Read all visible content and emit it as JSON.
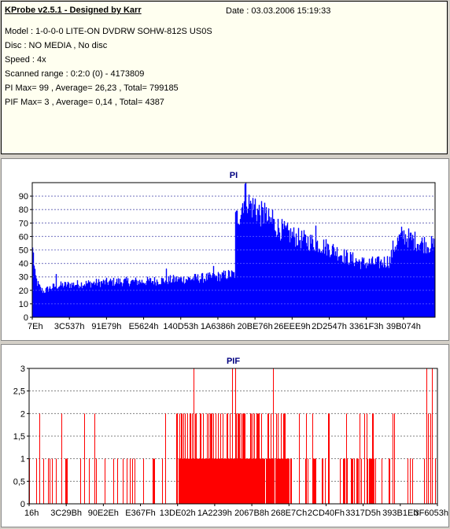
{
  "header": {
    "title": "KProbe v2.5.1 - Designed by Karr",
    "date": "Date : 03.03.2006 15:19:33",
    "lines": [
      "Model : 1-0-0-0 LITE-ON DVDRW SOHW-812S  US0S",
      "Disc : NO MEDIA , No disc",
      "Speed : 4x",
      "Scanned range : 0:2:0 (0) - 4173809",
      "PI Max= 99 , Average= 26,23 , Total= 799185",
      "PIF Max= 3 , Average= 0,14 , Total= 4387"
    ]
  },
  "colors": {
    "pi": "#0000ff",
    "pif": "#ff0000",
    "title": "#000080",
    "grid": "#808080"
  },
  "chart_data": [
    {
      "type": "area",
      "title": "PI",
      "ylim": [
        0,
        100
      ],
      "yticks": [
        0,
        10,
        20,
        30,
        40,
        50,
        60,
        70,
        80,
        90
      ],
      "xtick_labels": [
        "7Eh",
        "3C537h",
        "91E79h",
        "E5624h",
        "140D53h",
        "1A6386h",
        "20BE76h",
        "26EEE9h",
        "2D2547h",
        "3361F3h",
        "39B074h"
      ],
      "grid": "horizontal dotted",
      "profile": [
        [
          0,
          47
        ],
        [
          1,
          40
        ],
        [
          3,
          30
        ],
        [
          6,
          24
        ],
        [
          10,
          20
        ],
        [
          14,
          18
        ],
        [
          20,
          20
        ],
        [
          30,
          22
        ],
        [
          50,
          23
        ],
        [
          80,
          24
        ],
        [
          110,
          25
        ],
        [
          140,
          25
        ],
        [
          170,
          26
        ],
        [
          200,
          27
        ],
        [
          230,
          28
        ],
        [
          250,
          30
        ],
        [
          257,
          30
        ],
        [
          258,
          68
        ],
        [
          265,
          75
        ],
        [
          270,
          88
        ],
        [
          275,
          80
        ],
        [
          285,
          75
        ],
        [
          300,
          68
        ],
        [
          320,
          60
        ],
        [
          340,
          55
        ],
        [
          360,
          52
        ],
        [
          380,
          48
        ],
        [
          400,
          42
        ],
        [
          420,
          38
        ],
        [
          440,
          38
        ],
        [
          455,
          40
        ],
        [
          458,
          48
        ],
        [
          470,
          58
        ],
        [
          480,
          55
        ],
        [
          495,
          52
        ],
        [
          512,
          50
        ]
      ],
      "peaks": [
        [
          270,
          99
        ],
        [
          275,
          91
        ],
        [
          283,
          88
        ],
        [
          295,
          85
        ],
        [
          305,
          80
        ],
        [
          360,
          68
        ],
        [
          470,
          64
        ],
        [
          30,
          32
        ],
        [
          170,
          36
        ],
        [
          230,
          38
        ],
        [
          1,
          48
        ]
      ]
    },
    {
      "type": "bar",
      "title": "PIF",
      "ylim": [
        0,
        3
      ],
      "yticks": [
        0,
        0.5,
        1,
        1.5,
        2,
        2.5,
        3
      ],
      "ytick_labels": [
        "0",
        "0,5",
        "1",
        "1,5",
        "2",
        "2,5",
        "3"
      ],
      "xtick_labels": [
        "16h",
        "3C29Bh",
        "90E2Eh",
        "E367Fh",
        "13DE02h",
        "1A2239h",
        "2067B8h",
        "268E7Ch",
        "2CD40Fh",
        "3317D5h",
        "393B1Eh",
        "3F6053h"
      ],
      "grid": "horizontal dotted",
      "threes": [
        209,
        258,
        262,
        310,
        505,
        512
      ],
      "dense_regions": [
        [
          190,
          330,
          0.95,
          0.3
        ],
        [
          400,
          440,
          0.6,
          0.15
        ]
      ]
    }
  ]
}
